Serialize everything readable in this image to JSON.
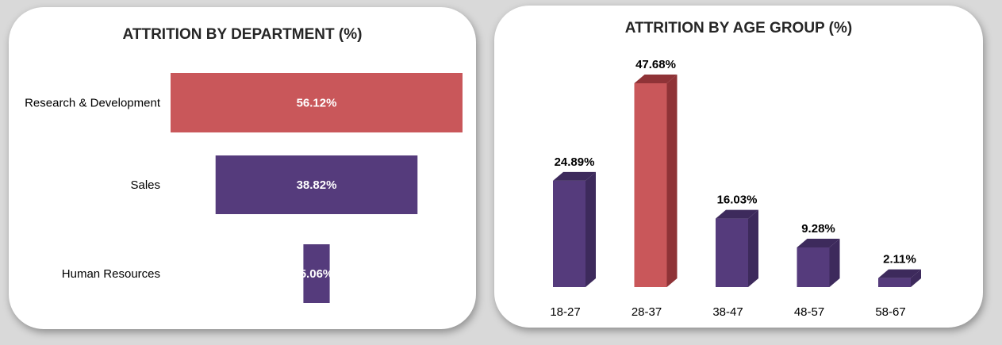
{
  "colors": {
    "accent_red": "#c9575a",
    "purple": "#553b7c",
    "purple_dark": "#3d2a5c",
    "red_dark": "#8f3337"
  },
  "chart_data": [
    {
      "type": "bar",
      "orientation": "horizontal",
      "title": "ATTRITION BY DEPARTMENT (%)",
      "categories": [
        "Research & Development",
        "Sales",
        "Human Resources"
      ],
      "values": [
        56.12,
        38.82,
        5.06
      ],
      "labels": [
        "56.12%",
        "38.82%",
        "5.06%"
      ],
      "highlight_index": 0,
      "grid": false
    },
    {
      "type": "bar",
      "orientation": "vertical",
      "style": "3d",
      "title": "ATTRITION BY AGE GROUP (%)",
      "categories": [
        "18-27",
        "28-37",
        "38-47",
        "48-57",
        "58-67"
      ],
      "values": [
        24.89,
        47.68,
        16.03,
        9.28,
        2.11
      ],
      "labels": [
        "24.89%",
        "47.68%",
        "16.03%",
        "9.28%",
        "2.11%"
      ],
      "highlight_index": 1,
      "grid": false
    }
  ]
}
